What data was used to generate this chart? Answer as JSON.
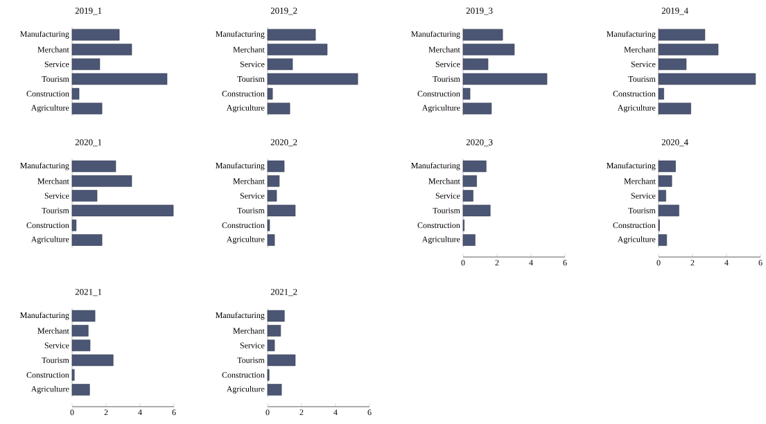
{
  "chart_data": [
    {
      "type": "bar",
      "orientation": "horizontal",
      "title": "2019_1",
      "categories": [
        "Manufacturing",
        "Merchant",
        "Service",
        "Tourism",
        "Construction",
        "Agriculture"
      ],
      "values": [
        2.78,
        3.51,
        1.63,
        5.59,
        0.41,
        1.76
      ],
      "color": "#4b5675",
      "xlim": [
        0,
        6
      ],
      "tick_labels": "y"
    },
    {
      "type": "bar",
      "orientation": "horizontal",
      "title": "2019_2",
      "categories": [
        "Manufacturing",
        "Merchant",
        "Service",
        "Tourism",
        "Construction",
        "Agriculture"
      ],
      "values": [
        2.82,
        3.51,
        1.47,
        5.31,
        0.29,
        1.31
      ],
      "color": "#4b5675",
      "xlim": [
        0,
        6
      ],
      "tick_labels": "y"
    },
    {
      "type": "bar",
      "orientation": "horizontal",
      "title": "2019_3",
      "categories": [
        "Manufacturing",
        "Merchant",
        "Service",
        "Tourism",
        "Construction",
        "Agriculture"
      ],
      "values": [
        2.33,
        3.02,
        1.47,
        4.94,
        0.41,
        1.67
      ],
      "color": "#4b5675",
      "xlim": [
        0,
        6
      ],
      "tick_labels": "y"
    },
    {
      "type": "bar",
      "orientation": "horizontal",
      "title": "2019_4",
      "categories": [
        "Manufacturing",
        "Merchant",
        "Service",
        "Tourism",
        "Construction",
        "Agriculture"
      ],
      "values": [
        2.73,
        3.51,
        1.63,
        5.71,
        0.31,
        1.9
      ],
      "color": "#4b5675",
      "xlim": [
        0,
        6
      ],
      "tick_labels": "y"
    },
    {
      "type": "bar",
      "orientation": "horizontal",
      "title": "2020_1",
      "categories": [
        "Manufacturing",
        "Merchant",
        "Service",
        "Tourism",
        "Construction",
        "Agriculture"
      ],
      "values": [
        2.57,
        3.51,
        1.47,
        5.96,
        0.24,
        1.76
      ],
      "color": "#4b5675",
      "xlim": [
        0,
        6
      ],
      "tick_labels": "y"
    },
    {
      "type": "bar",
      "orientation": "horizontal",
      "title": "2020_2",
      "categories": [
        "Manufacturing",
        "Merchant",
        "Service",
        "Tourism",
        "Construction",
        "Agriculture"
      ],
      "values": [
        0.98,
        0.69,
        0.53,
        1.63,
        0.12,
        0.41
      ],
      "color": "#4b5675",
      "xlim": [
        0,
        6
      ],
      "tick_labels": "y"
    },
    {
      "type": "bar",
      "orientation": "horizontal",
      "title": "2020_3",
      "categories": [
        "Manufacturing",
        "Merchant",
        "Service",
        "Tourism",
        "Construction",
        "Agriculture"
      ],
      "values": [
        1.36,
        0.8,
        0.59,
        1.6,
        0.07,
        0.71
      ],
      "color": "#4b5675",
      "xlim": [
        0,
        6
      ],
      "xticks": [
        0,
        2,
        4,
        6
      ]
    },
    {
      "type": "bar",
      "orientation": "horizontal",
      "title": "2020_4",
      "categories": [
        "Manufacturing",
        "Merchant",
        "Service",
        "Tourism",
        "Construction",
        "Agriculture"
      ],
      "values": [
        1.0,
        0.78,
        0.43,
        1.2,
        0.06,
        0.48
      ],
      "color": "#4b5675",
      "xlim": [
        0,
        6
      ],
      "xticks": [
        0,
        2,
        4,
        6
      ]
    },
    {
      "type": "bar",
      "orientation": "horizontal",
      "title": "2021_1",
      "categories": [
        "Manufacturing",
        "Merchant",
        "Service",
        "Tourism",
        "Construction",
        "Agriculture"
      ],
      "values": [
        1.35,
        0.95,
        1.06,
        2.42,
        0.13,
        1.03
      ],
      "color": "#4b5675",
      "xlim": [
        0,
        6
      ],
      "xticks": [
        0,
        2,
        4,
        6
      ]
    },
    {
      "type": "bar",
      "orientation": "horizontal",
      "title": "2021_2",
      "categories": [
        "Manufacturing",
        "Merchant",
        "Service",
        "Tourism",
        "Construction",
        "Agriculture"
      ],
      "values": [
        0.99,
        0.77,
        0.41,
        1.63,
        0.09,
        0.82
      ],
      "color": "#4b5675",
      "xlim": [
        0,
        6
      ],
      "xticks": [
        0,
        2,
        4,
        6
      ]
    }
  ]
}
